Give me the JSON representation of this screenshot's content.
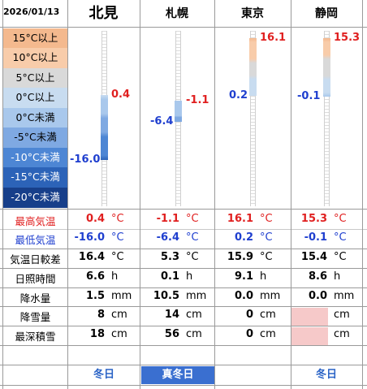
{
  "header": {
    "date": "2026/01/13",
    "cities": [
      "北見",
      "札幌",
      "東京",
      "静岡"
    ]
  },
  "legend": {
    "bands": [
      {
        "label": "15°C以上",
        "color": "#f4b98e",
        "text_color": "#000000"
      },
      {
        "label": "10°C以上",
        "color": "#f8ccaa",
        "text_color": "#000000"
      },
      {
        "label": "5°C以上",
        "color": "#d9d9d9",
        "text_color": "#000000"
      },
      {
        "label": "0°C以上",
        "color": "#c8dcf0",
        "text_color": "#000000"
      },
      {
        "label": "0°C未満",
        "color": "#a9c8ec",
        "text_color": "#000000"
      },
      {
        "label": "-5°C未満",
        "color": "#7fa9e2",
        "text_color": "#000000"
      },
      {
        "label": "-10°C未満",
        "color": "#4d86d4",
        "text_color": "#ffffff"
      },
      {
        "label": "-15°C未満",
        "color": "#2c63b8",
        "text_color": "#ffffff"
      },
      {
        "label": "-20°C未満",
        "color": "#173f8a",
        "text_color": "#ffffff"
      }
    ]
  },
  "temps": [
    {
      "high": "0.4",
      "low": "-16.0"
    },
    {
      "high": "-1.1",
      "low": "-6.4"
    },
    {
      "high": "16.1",
      "low": "0.2"
    },
    {
      "high": "15.3",
      "low": "-0.1"
    }
  ],
  "rows": {
    "max_label": "最高気温",
    "min_label": "最低気温",
    "range_label": "気温日較差",
    "sun_label": "日照時間",
    "precip_label": "降水量",
    "snowfall_label": "降雪量",
    "snowdepth_label": "最深積雪"
  },
  "units": {
    "temp": "°C",
    "hour": "h",
    "mm": "mm",
    "cm": "cm"
  },
  "values": [
    {
      "range": "16.4",
      "sun": "6.6",
      "precip": "1.5",
      "snowfall": "8",
      "snowdepth": "18",
      "footer": "冬日"
    },
    {
      "range": "5.3",
      "sun": "0.1",
      "precip": "10.5",
      "snowfall": "14",
      "snowdepth": "56",
      "footer": "真冬日"
    },
    {
      "range": "15.9",
      "sun": "9.1",
      "precip": "0.0",
      "snowfall": "0",
      "snowdepth": "0",
      "footer": ""
    },
    {
      "range": "15.4",
      "sun": "8.6",
      "precip": "0.0",
      "snowfall": "",
      "snowdepth": "",
      "footer": "冬日"
    }
  ],
  "colors": {
    "high": "#e02020",
    "low": "#1f3fcf",
    "footer_text": "#2a63c6",
    "footer_highlight_bg": "#3a6fd0",
    "footer_highlight_text": "#ffffff",
    "missing_cell": "#f6c9c9"
  }
}
